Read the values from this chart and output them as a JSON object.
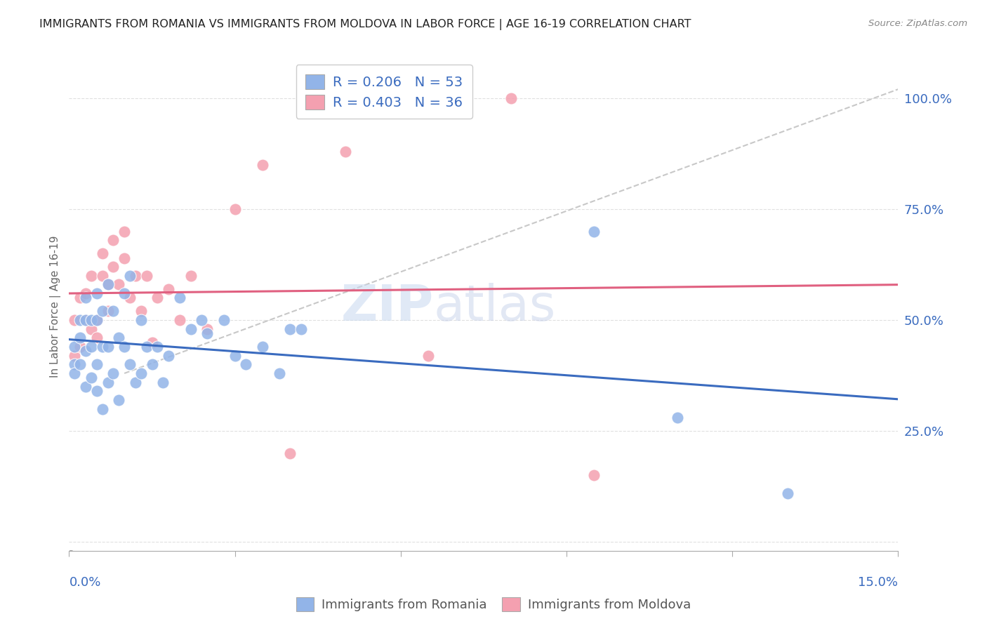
{
  "title": "IMMIGRANTS FROM ROMANIA VS IMMIGRANTS FROM MOLDOVA IN LABOR FORCE | AGE 16-19 CORRELATION CHART",
  "source": "Source: ZipAtlas.com",
  "ylabel": "In Labor Force | Age 16-19",
  "y_ticks": [
    0.0,
    0.25,
    0.5,
    0.75,
    1.0
  ],
  "y_tick_labels": [
    "",
    "25.0%",
    "50.0%",
    "75.0%",
    "100.0%"
  ],
  "x_range": [
    0.0,
    0.15
  ],
  "y_range": [
    -0.02,
    1.08
  ],
  "romania_R": "0.206",
  "romania_N": "53",
  "moldova_R": "0.403",
  "moldova_N": "36",
  "romania_color": "#92b4e8",
  "moldova_color": "#f4a0b0",
  "romania_line_color": "#3a6bbf",
  "moldova_line_color": "#e06080",
  "trend_line_dashed_color": "#c8c8c8",
  "watermark_zip": "ZIP",
  "watermark_atlas": "atlas",
  "romania_scatter_x": [
    0.001,
    0.001,
    0.001,
    0.002,
    0.002,
    0.002,
    0.003,
    0.003,
    0.003,
    0.003,
    0.004,
    0.004,
    0.004,
    0.005,
    0.005,
    0.005,
    0.005,
    0.006,
    0.006,
    0.006,
    0.007,
    0.007,
    0.007,
    0.008,
    0.008,
    0.009,
    0.009,
    0.01,
    0.01,
    0.011,
    0.011,
    0.012,
    0.013,
    0.013,
    0.014,
    0.015,
    0.016,
    0.017,
    0.018,
    0.02,
    0.022,
    0.024,
    0.025,
    0.028,
    0.03,
    0.032,
    0.035,
    0.038,
    0.04,
    0.042,
    0.095,
    0.11,
    0.13
  ],
  "romania_scatter_y": [
    0.4,
    0.44,
    0.38,
    0.4,
    0.46,
    0.5,
    0.35,
    0.43,
    0.5,
    0.55,
    0.37,
    0.44,
    0.5,
    0.34,
    0.4,
    0.5,
    0.56,
    0.3,
    0.44,
    0.52,
    0.36,
    0.44,
    0.58,
    0.38,
    0.52,
    0.32,
    0.46,
    0.44,
    0.56,
    0.4,
    0.6,
    0.36,
    0.38,
    0.5,
    0.44,
    0.4,
    0.44,
    0.36,
    0.42,
    0.55,
    0.48,
    0.5,
    0.47,
    0.5,
    0.42,
    0.4,
    0.44,
    0.38,
    0.48,
    0.48,
    0.7,
    0.28,
    0.11
  ],
  "moldova_scatter_x": [
    0.001,
    0.001,
    0.002,
    0.002,
    0.003,
    0.003,
    0.004,
    0.004,
    0.005,
    0.005,
    0.006,
    0.006,
    0.007,
    0.007,
    0.008,
    0.008,
    0.009,
    0.01,
    0.01,
    0.011,
    0.012,
    0.013,
    0.014,
    0.015,
    0.016,
    0.018,
    0.02,
    0.022,
    0.025,
    0.03,
    0.035,
    0.04,
    0.05,
    0.065,
    0.08,
    0.095
  ],
  "moldova_scatter_y": [
    0.42,
    0.5,
    0.44,
    0.55,
    0.5,
    0.56,
    0.48,
    0.6,
    0.5,
    0.46,
    0.6,
    0.65,
    0.52,
    0.58,
    0.62,
    0.68,
    0.58,
    0.64,
    0.7,
    0.55,
    0.6,
    0.52,
    0.6,
    0.45,
    0.55,
    0.57,
    0.5,
    0.6,
    0.48,
    0.75,
    0.85,
    0.2,
    0.88,
    0.42,
    1.0,
    0.15
  ],
  "background_color": "#ffffff",
  "grid_color": "#e0e0e0",
  "title_color": "#222222",
  "tick_label_color": "#3a6bbf"
}
